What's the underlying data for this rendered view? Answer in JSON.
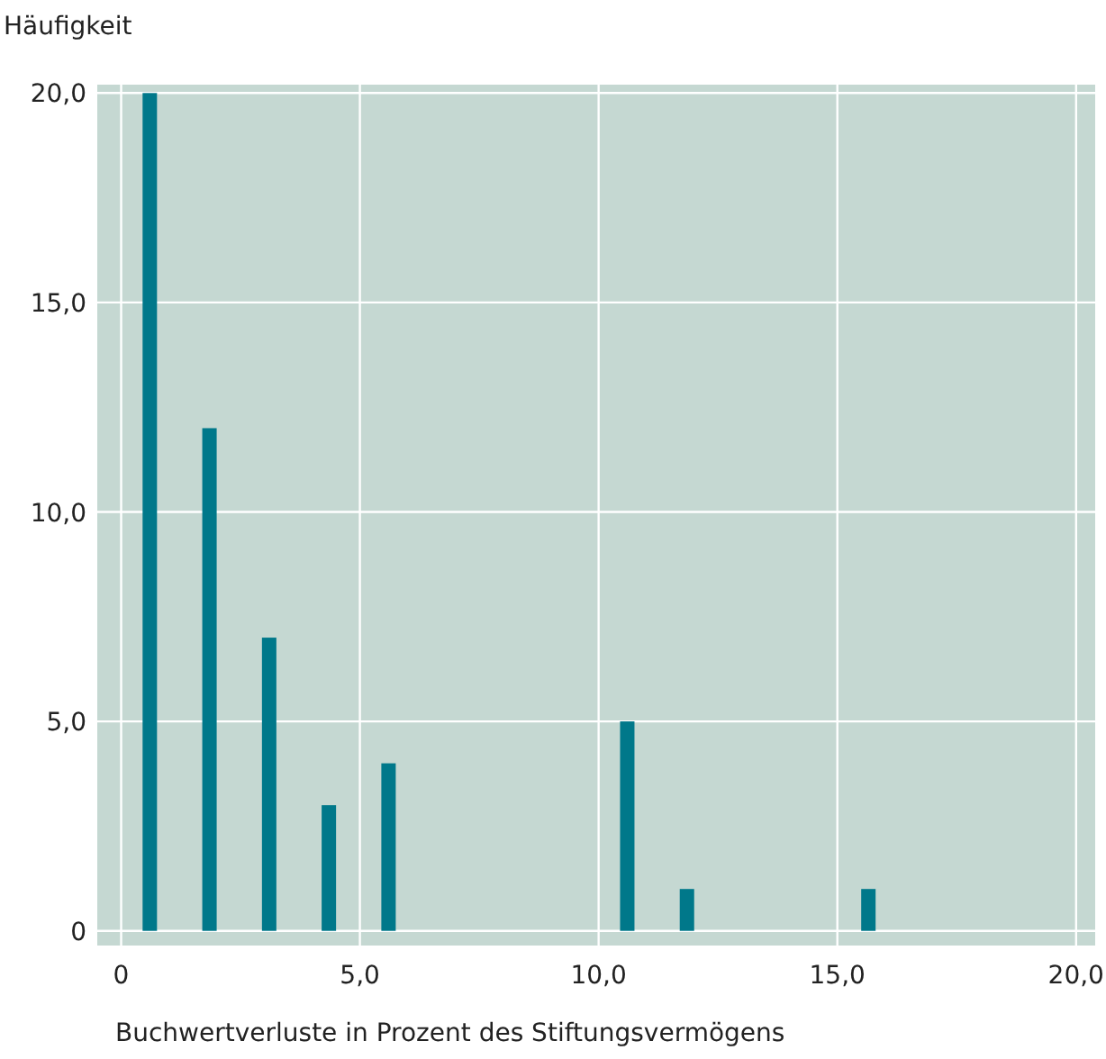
{
  "chart_data": {
    "type": "bar",
    "ylabel": "Häufigkeit",
    "xlabel": "Buchwertverluste in Prozent des Stiftungsvermögens",
    "x": [
      0.6,
      1.85,
      3.1,
      4.35,
      5.6,
      10.6,
      11.85,
      15.65
    ],
    "values": [
      20,
      12,
      7,
      3,
      4,
      5,
      1,
      1
    ],
    "color": "#00788a",
    "xlim": [
      -0.5,
      20.4
    ],
    "ylim": [
      -0.35,
      20.2
    ],
    "xticks": [
      0,
      {
        "value": 5,
        "label": "5,0"
      },
      {
        "value": 10,
        "label": "10,0"
      },
      {
        "value": 15,
        "label": "15,0"
      },
      {
        "value": 20,
        "label": "20,0"
      }
    ],
    "yticks": [
      0,
      {
        "value": 5,
        "label": "5,0"
      },
      {
        "value": 10,
        "label": "10,0"
      },
      {
        "value": 15,
        "label": "15,0"
      },
      {
        "value": 20,
        "label": "20,0"
      }
    ],
    "grid": true
  }
}
